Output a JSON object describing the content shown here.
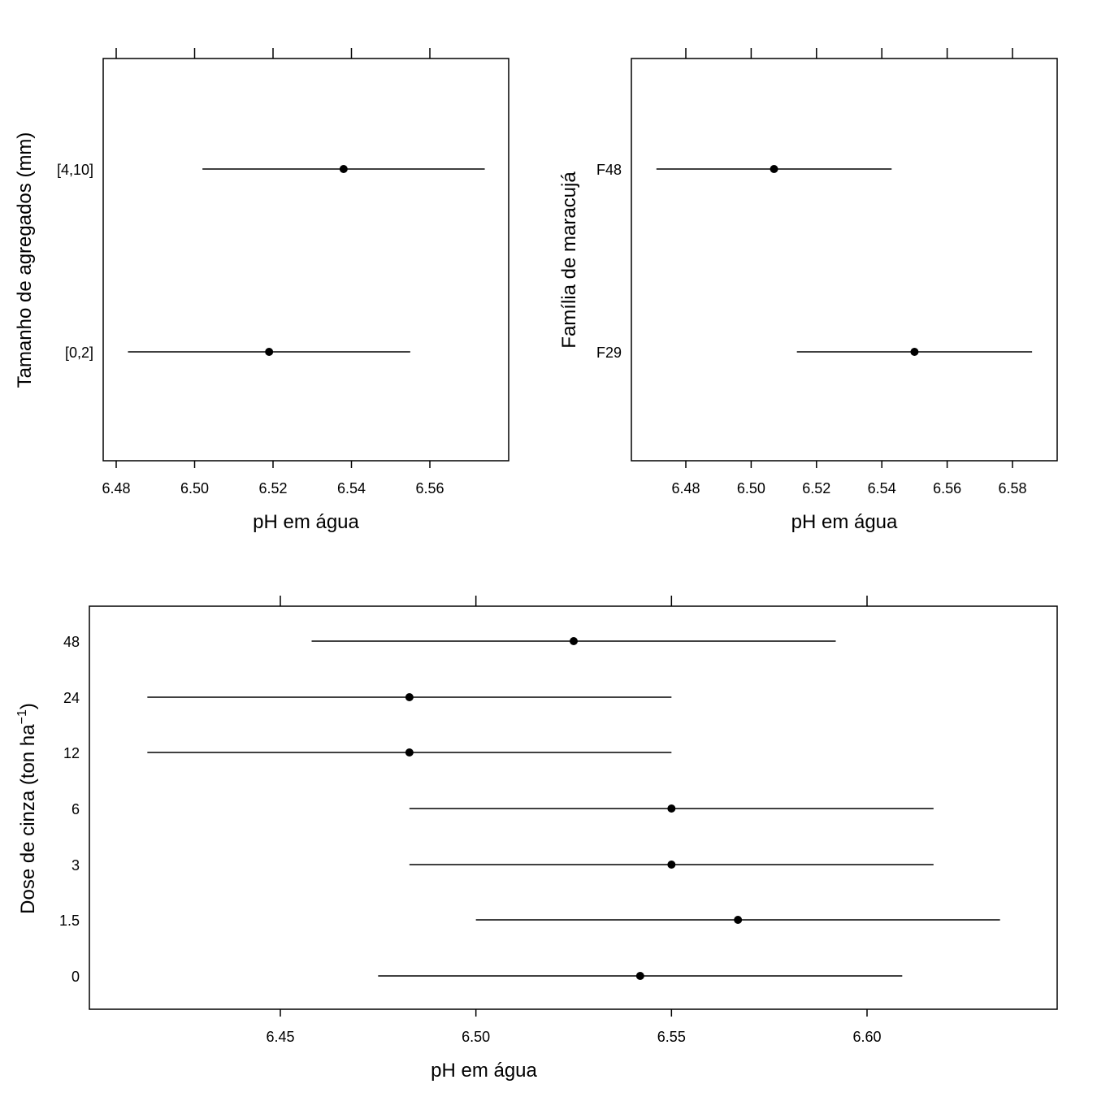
{
  "chart_data": [
    {
      "type": "dotplot",
      "xlabel": "pH em água",
      "ylabel": "Tamanho de agregados (mm)",
      "x_ticks": [
        6.48,
        6.5,
        6.52,
        6.54,
        6.56
      ],
      "categories": [
        "[0,2]",
        "[4,10]"
      ],
      "estimates": [
        6.519,
        6.538
      ],
      "lower": [
        6.483,
        6.502
      ],
      "upper": [
        6.555,
        6.574
      ]
    },
    {
      "type": "dotplot",
      "xlabel": "pH em água",
      "ylabel": "Família de maracujá",
      "x_ticks": [
        6.48,
        6.5,
        6.52,
        6.54,
        6.56,
        6.58
      ],
      "categories": [
        "F29",
        "F48"
      ],
      "estimates": [
        6.55,
        6.507
      ],
      "lower": [
        6.514,
        6.471
      ],
      "upper": [
        6.586,
        6.543
      ]
    },
    {
      "type": "dotplot",
      "xlabel": "pH em água",
      "ylabel": "Dose de cinza (ton ha",
      "ylabel_sup": "−1",
      "ylabel_end": ")",
      "x_ticks": [
        6.45,
        6.5,
        6.55,
        6.6
      ],
      "categories": [
        "0",
        "1.5",
        "3",
        "6",
        "12",
        "24",
        "48"
      ],
      "estimates": [
        6.542,
        6.567,
        6.55,
        6.55,
        6.483,
        6.483,
        6.525
      ],
      "lower": [
        6.475,
        6.5,
        6.483,
        6.483,
        6.416,
        6.416,
        6.458
      ],
      "upper": [
        6.609,
        6.634,
        6.617,
        6.617,
        6.55,
        6.55,
        6.592
      ]
    }
  ]
}
